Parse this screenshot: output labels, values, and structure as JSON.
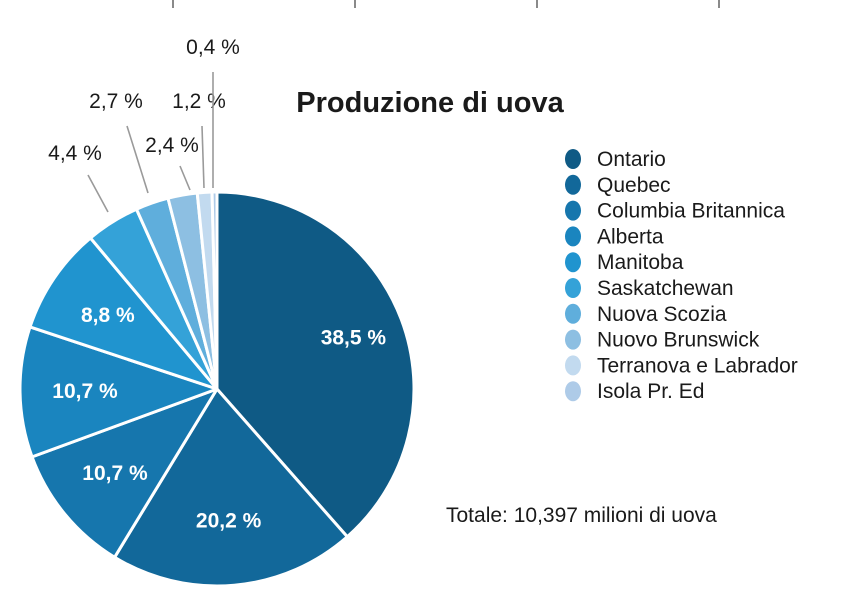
{
  "chart_data": {
    "type": "pie",
    "title": "Produzione di uova",
    "note": "Totale: 10,397 milioni di uova",
    "slices": [
      {
        "label": "Ontario",
        "value": 38.5,
        "text": "38,5 %",
        "color": "#0f5a85"
      },
      {
        "label": "Quebec",
        "value": 20.2,
        "text": "20,2 %",
        "color": "#12689a"
      },
      {
        "label": "Columbia Britannica",
        "value": 10.7,
        "text": "10,7 %",
        "color": "#1676ad"
      },
      {
        "label": "Alberta",
        "value": 10.7,
        "text": "10,7 %",
        "color": "#1a85bf"
      },
      {
        "label": "Manitoba",
        "value": 8.8,
        "text": "8,8 %",
        "color": "#2094cf"
      },
      {
        "label": "Saskatchewan",
        "value": 4.4,
        "text": "4,4 %",
        "color": "#34a2d8"
      },
      {
        "label": "Nuova Scozia",
        "value": 2.7,
        "text": "2,7 %",
        "color": "#5faedc"
      },
      {
        "label": "Nuovo Brunswick",
        "value": 2.4,
        "text": "2,4 %",
        "color": "#8dbfe2"
      },
      {
        "label": "Terranova e Labrador",
        "value": 1.2,
        "text": "1,2 %",
        "color": "#c2daef"
      },
      {
        "label": "Isola Pr. Ed",
        "value": 0.4,
        "text": "0,4 %",
        "color": "#aecbe8"
      }
    ],
    "legend_position": "right"
  }
}
